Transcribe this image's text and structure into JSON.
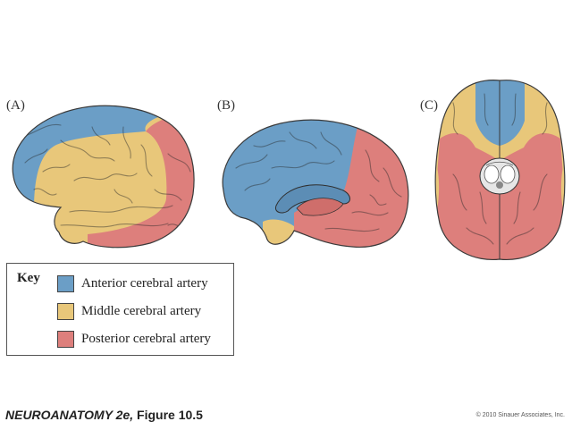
{
  "panels": {
    "a_label": "(A)",
    "b_label": "(B)",
    "c_label": "(C)"
  },
  "key": {
    "title": "Key",
    "items": [
      {
        "label": "Anterior cerebral artery",
        "color": "#6b9ec6"
      },
      {
        "label": "Middle cerebral artery",
        "color": "#e8c77a"
      },
      {
        "label": "Posterior cerebral artery",
        "color": "#dd7f7c"
      }
    ]
  },
  "caption": {
    "book": "NEUROANATOMY 2e,",
    "figure": "Figure 10.5"
  },
  "copyright": "© 2010 Sinauer Associates, Inc."
}
